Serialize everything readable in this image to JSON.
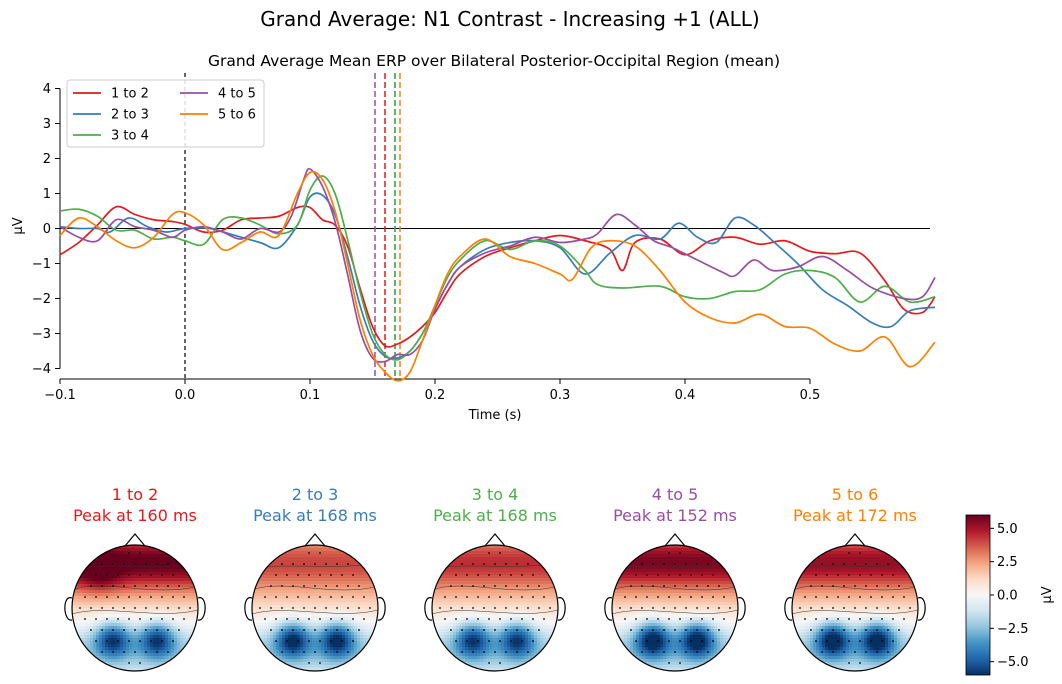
{
  "suptitle": "Grand Average: N1 Contrast - Increasing +1 (ALL)",
  "chart_data": [
    {
      "type": "line",
      "title": "Grand Average Mean ERP over Bilateral Posterior-Occipital Region (mean)",
      "xlabel": "Time (s)",
      "ylabel": "µV",
      "xlim": [
        -0.1,
        0.6
      ],
      "ylim": [
        -4.3,
        4.1
      ],
      "xticks": [
        -0.1,
        0.0,
        0.1,
        0.2,
        0.3,
        0.4,
        0.5
      ],
      "xtick_labels": [
        "−0.1",
        "0.0",
        "0.1",
        "0.2",
        "0.3",
        "0.4",
        "0.5"
      ],
      "yticks": [
        -4,
        -3,
        -2,
        -1,
        0,
        1,
        2,
        3,
        4
      ],
      "ytick_labels": [
        "−4",
        "−3",
        "−2",
        "−1",
        "0",
        "1",
        "2",
        "3",
        "4"
      ],
      "grid": false,
      "legend": "top-left",
      "zero_line": true,
      "onset_line": 0.0,
      "series": [
        {
          "name": "1 to 2",
          "color": "#e41a1c",
          "peak_time": 0.16,
          "points": [
            [
              -0.1,
              -0.75
            ],
            [
              -0.085,
              -0.4
            ],
            [
              -0.07,
              0.1
            ],
            [
              -0.055,
              0.62
            ],
            [
              -0.04,
              0.4
            ],
            [
              -0.025,
              0.25
            ],
            [
              -0.01,
              0.2
            ],
            [
              0.0,
              0.12
            ],
            [
              0.015,
              -0.1
            ],
            [
              0.03,
              -0.05
            ],
            [
              0.045,
              0.25
            ],
            [
              0.06,
              0.3
            ],
            [
              0.075,
              0.35
            ],
            [
              0.09,
              0.6
            ],
            [
              0.1,
              0.6
            ],
            [
              0.11,
              0.25
            ],
            [
              0.12,
              0.1
            ],
            [
              0.13,
              -0.5
            ],
            [
              0.14,
              -1.7
            ],
            [
              0.15,
              -2.8
            ],
            [
              0.16,
              -3.35
            ],
            [
              0.17,
              -3.3
            ],
            [
              0.18,
              -3.1
            ],
            [
              0.19,
              -2.8
            ],
            [
              0.2,
              -2.4
            ],
            [
              0.21,
              -1.8
            ],
            [
              0.22,
              -1.3
            ],
            [
              0.24,
              -0.8
            ],
            [
              0.26,
              -0.55
            ],
            [
              0.28,
              -0.35
            ],
            [
              0.3,
              -0.2
            ],
            [
              0.32,
              -0.35
            ],
            [
              0.34,
              -0.6
            ],
            [
              0.35,
              -1.2
            ],
            [
              0.36,
              -0.4
            ],
            [
              0.38,
              -0.3
            ],
            [
              0.4,
              -0.75
            ],
            [
              0.42,
              -0.35
            ],
            [
              0.44,
              -0.25
            ],
            [
              0.46,
              -0.45
            ],
            [
              0.48,
              -0.35
            ],
            [
              0.5,
              -0.65
            ],
            [
              0.52,
              -0.72
            ],
            [
              0.54,
              -0.7
            ],
            [
              0.56,
              -1.5
            ],
            [
              0.575,
              -2.3
            ],
            [
              0.59,
              -2.4
            ],
            [
              0.6,
              -1.95
            ]
          ]
        },
        {
          "name": "2 to 3",
          "color": "#377eb8",
          "peak_time": 0.168,
          "points": [
            [
              -0.1,
              0.05
            ],
            [
              -0.085,
              0.0
            ],
            [
              -0.07,
              0.0
            ],
            [
              -0.06,
              -0.1
            ],
            [
              -0.045,
              0.3
            ],
            [
              -0.03,
              0.05
            ],
            [
              -0.015,
              -0.1
            ],
            [
              0.0,
              0.0
            ],
            [
              0.02,
              0.0
            ],
            [
              0.04,
              -0.2
            ],
            [
              0.06,
              -0.4
            ],
            [
              0.075,
              -0.55
            ],
            [
              0.09,
              0.1
            ],
            [
              0.1,
              0.9
            ],
            [
              0.11,
              0.95
            ],
            [
              0.12,
              0.4
            ],
            [
              0.13,
              -0.8
            ],
            [
              0.14,
              -2.2
            ],
            [
              0.15,
              -3.2
            ],
            [
              0.16,
              -3.65
            ],
            [
              0.17,
              -3.7
            ],
            [
              0.18,
              -3.5
            ],
            [
              0.19,
              -3.0
            ],
            [
              0.2,
              -2.3
            ],
            [
              0.21,
              -1.6
            ],
            [
              0.22,
              -1.1
            ],
            [
              0.24,
              -0.6
            ],
            [
              0.26,
              -0.4
            ],
            [
              0.28,
              -0.35
            ],
            [
              0.3,
              -0.55
            ],
            [
              0.32,
              -1.3
            ],
            [
              0.34,
              -0.7
            ],
            [
              0.36,
              -0.2
            ],
            [
              0.38,
              -0.3
            ],
            [
              0.395,
              0.15
            ],
            [
              0.41,
              -0.25
            ],
            [
              0.425,
              -0.4
            ],
            [
              0.44,
              0.3
            ],
            [
              0.455,
              0.1
            ],
            [
              0.47,
              -0.35
            ],
            [
              0.49,
              -1.0
            ],
            [
              0.51,
              -1.75
            ],
            [
              0.53,
              -2.2
            ],
            [
              0.55,
              -2.7
            ],
            [
              0.565,
              -2.8
            ],
            [
              0.58,
              -2.35
            ],
            [
              0.6,
              -2.25
            ]
          ]
        },
        {
          "name": "3 to 4",
          "color": "#4daf4a",
          "peak_time": 0.168,
          "points": [
            [
              -0.1,
              0.5
            ],
            [
              -0.085,
              0.55
            ],
            [
              -0.07,
              0.35
            ],
            [
              -0.055,
              -0.05
            ],
            [
              -0.04,
              -0.05
            ],
            [
              -0.025,
              -0.3
            ],
            [
              -0.01,
              -0.25
            ],
            [
              0.0,
              -0.35
            ],
            [
              0.015,
              -0.45
            ],
            [
              0.03,
              0.25
            ],
            [
              0.045,
              0.3
            ],
            [
              0.06,
              0.1
            ],
            [
              0.075,
              -0.15
            ],
            [
              0.09,
              0.1
            ],
            [
              0.1,
              1.1
            ],
            [
              0.11,
              1.5
            ],
            [
              0.12,
              1.0
            ],
            [
              0.13,
              -0.3
            ],
            [
              0.14,
              -1.8
            ],
            [
              0.15,
              -3.0
            ],
            [
              0.16,
              -3.6
            ],
            [
              0.17,
              -3.75
            ],
            [
              0.18,
              -3.5
            ],
            [
              0.19,
              -3.0
            ],
            [
              0.2,
              -2.2
            ],
            [
              0.21,
              -1.4
            ],
            [
              0.22,
              -0.9
            ],
            [
              0.24,
              -0.35
            ],
            [
              0.26,
              -0.6
            ],
            [
              0.28,
              -0.35
            ],
            [
              0.3,
              -0.5
            ],
            [
              0.32,
              -1.2
            ],
            [
              0.33,
              -1.6
            ],
            [
              0.35,
              -1.7
            ],
            [
              0.38,
              -1.65
            ],
            [
              0.4,
              -1.95
            ],
            [
              0.42,
              -2.0
            ],
            [
              0.44,
              -1.8
            ],
            [
              0.46,
              -1.75
            ],
            [
              0.48,
              -1.3
            ],
            [
              0.5,
              -1.2
            ],
            [
              0.52,
              -1.4
            ],
            [
              0.54,
              -2.1
            ],
            [
              0.56,
              -1.65
            ],
            [
              0.58,
              -2.1
            ],
            [
              0.6,
              -1.95
            ]
          ]
        },
        {
          "name": "4 to 5",
          "color": "#984ea3",
          "peak_time": 0.152,
          "points": [
            [
              -0.1,
              0.05
            ],
            [
              -0.085,
              -0.25
            ],
            [
              -0.07,
              -0.35
            ],
            [
              -0.055,
              0.25
            ],
            [
              -0.04,
              0.05
            ],
            [
              -0.025,
              -0.05
            ],
            [
              -0.01,
              -0.25
            ],
            [
              0.0,
              -0.05
            ],
            [
              0.015,
              0.05
            ],
            [
              0.03,
              -0.1
            ],
            [
              0.045,
              -0.3
            ],
            [
              0.06,
              0.0
            ],
            [
              0.075,
              -0.1
            ],
            [
              0.085,
              0.35
            ],
            [
              0.095,
              1.4
            ],
            [
              0.1,
              1.7
            ],
            [
              0.11,
              1.2
            ],
            [
              0.12,
              0.2
            ],
            [
              0.13,
              -1.3
            ],
            [
              0.14,
              -2.9
            ],
            [
              0.15,
              -3.7
            ],
            [
              0.16,
              -3.8
            ],
            [
              0.17,
              -3.6
            ],
            [
              0.18,
              -3.6
            ],
            [
              0.19,
              -3.2
            ],
            [
              0.2,
              -2.3
            ],
            [
              0.21,
              -1.6
            ],
            [
              0.22,
              -1.1
            ],
            [
              0.24,
              -0.7
            ],
            [
              0.26,
              -0.5
            ],
            [
              0.28,
              -0.25
            ],
            [
              0.3,
              -0.4
            ],
            [
              0.32,
              -0.3
            ],
            [
              0.33,
              -0.15
            ],
            [
              0.345,
              0.4
            ],
            [
              0.36,
              0.1
            ],
            [
              0.375,
              -0.35
            ],
            [
              0.39,
              -0.55
            ],
            [
              0.41,
              -0.9
            ],
            [
              0.43,
              -1.25
            ],
            [
              0.44,
              -1.35
            ],
            [
              0.455,
              -0.9
            ],
            [
              0.47,
              -1.2
            ],
            [
              0.49,
              -1.1
            ],
            [
              0.51,
              -0.8
            ],
            [
              0.53,
              -1.2
            ],
            [
              0.55,
              -1.7
            ],
            [
              0.575,
              -2.0
            ],
            [
              0.59,
              -1.95
            ],
            [
              0.6,
              -1.4
            ]
          ]
        },
        {
          "name": "5 to 6",
          "color": "#ff7f00",
          "peak_time": 0.172,
          "points": [
            [
              -0.1,
              -0.2
            ],
            [
              -0.085,
              0.3
            ],
            [
              -0.07,
              0.05
            ],
            [
              -0.055,
              -0.35
            ],
            [
              -0.04,
              -0.55
            ],
            [
              -0.025,
              -0.25
            ],
            [
              -0.01,
              0.4
            ],
            [
              0.0,
              0.45
            ],
            [
              0.015,
              0.1
            ],
            [
              0.03,
              -0.6
            ],
            [
              0.045,
              -0.4
            ],
            [
              0.06,
              -0.1
            ],
            [
              0.075,
              -0.2
            ],
            [
              0.09,
              1.0
            ],
            [
              0.1,
              1.6
            ],
            [
              0.11,
              1.4
            ],
            [
              0.12,
              0.5
            ],
            [
              0.13,
              -1.0
            ],
            [
              0.14,
              -2.6
            ],
            [
              0.15,
              -3.6
            ],
            [
              0.16,
              -4.1
            ],
            [
              0.17,
              -4.35
            ],
            [
              0.18,
              -4.1
            ],
            [
              0.19,
              -3.2
            ],
            [
              0.2,
              -2.2
            ],
            [
              0.21,
              -1.3
            ],
            [
              0.22,
              -0.8
            ],
            [
              0.24,
              -0.3
            ],
            [
              0.26,
              -0.8
            ],
            [
              0.28,
              -1.0
            ],
            [
              0.3,
              -1.3
            ],
            [
              0.31,
              -1.45
            ],
            [
              0.325,
              -0.55
            ],
            [
              0.34,
              -0.35
            ],
            [
              0.36,
              -0.5
            ],
            [
              0.38,
              -1.2
            ],
            [
              0.4,
              -2.1
            ],
            [
              0.42,
              -2.55
            ],
            [
              0.44,
              -2.7
            ],
            [
              0.46,
              -2.45
            ],
            [
              0.48,
              -2.8
            ],
            [
              0.5,
              -2.85
            ],
            [
              0.52,
              -3.3
            ],
            [
              0.54,
              -3.5
            ],
            [
              0.56,
              -3.1
            ],
            [
              0.58,
              -3.95
            ],
            [
              0.6,
              -3.25
            ]
          ]
        }
      ]
    },
    {
      "type": "heatmap",
      "colorbar": {
        "label": "µV",
        "vmin": -6,
        "vmax": 6,
        "ticks": [
          5.0,
          2.5,
          0.0,
          -2.5,
          -5.0
        ],
        "tick_labels": [
          "5.0",
          "2.5",
          "0.0",
          "−2.5",
          "−5.0"
        ],
        "colors": [
          "#053061",
          "#2166ac",
          "#4393c3",
          "#92c5de",
          "#d1e5f0",
          "#f7f7f7",
          "#fddbc7",
          "#f4a582",
          "#d6604d",
          "#b2182b",
          "#67001f"
        ]
      },
      "topomaps": [
        {
          "label": "1 to 2",
          "peak": "Peak at 160 ms",
          "color": "#e41a1c"
        },
        {
          "label": "2 to 3",
          "peak": "Peak at 168 ms",
          "color": "#377eb8"
        },
        {
          "label": "3 to 4",
          "peak": "Peak at 168 ms",
          "color": "#4daf4a"
        },
        {
          "label": "4 to 5",
          "peak": "Peak at 152 ms",
          "color": "#984ea3"
        },
        {
          "label": "5 to 6",
          "peak": "Peak at 172 ms",
          "color": "#ff7f00"
        }
      ]
    }
  ]
}
